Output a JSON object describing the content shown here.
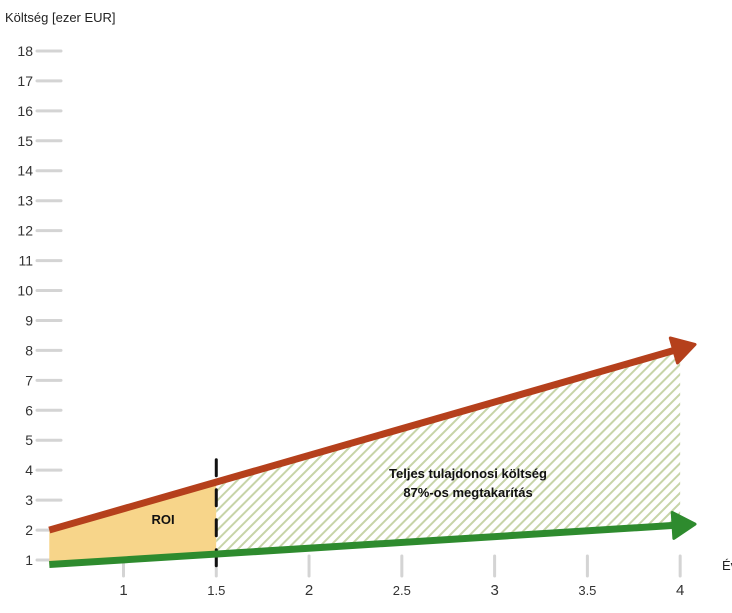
{
  "chart_data": {
    "type": "line",
    "ylabel": "Költség [ezer EUR]",
    "xlabel": "Év",
    "xlim": [
      0.55,
      4.15
    ],
    "ylim": [
      0.8,
      18.5
    ],
    "x_ticks": [
      {
        "value": 1,
        "label": "1",
        "major": true
      },
      {
        "value": 1.5,
        "label": "1.5",
        "major": false
      },
      {
        "value": 2,
        "label": "2",
        "major": true
      },
      {
        "value": 2.5,
        "label": "2.5",
        "major": false
      },
      {
        "value": 3,
        "label": "3",
        "major": true
      },
      {
        "value": 3.5,
        "label": "3.5",
        "major": false
      },
      {
        "value": 4,
        "label": "4",
        "major": true
      }
    ],
    "y_ticks": [
      {
        "value": 1,
        "label": "1"
      },
      {
        "value": 2,
        "label": "2"
      },
      {
        "value": 3,
        "label": "3"
      },
      {
        "value": 4,
        "label": "4"
      },
      {
        "value": 5,
        "label": "5"
      },
      {
        "value": 6,
        "label": "6"
      },
      {
        "value": 7,
        "label": "7"
      },
      {
        "value": 8,
        "label": "8"
      },
      {
        "value": 9,
        "label": "9"
      },
      {
        "value": 10,
        "label": "10"
      },
      {
        "value": 11,
        "label": "11"
      },
      {
        "value": 12,
        "label": "12"
      },
      {
        "value": 13,
        "label": "13"
      },
      {
        "value": 14,
        "label": "14"
      },
      {
        "value": 15,
        "label": "15"
      },
      {
        "value": 16,
        "label": "16"
      },
      {
        "value": 17,
        "label": "17"
      },
      {
        "value": 18,
        "label": "18"
      }
    ],
    "series": [
      {
        "color": "#b5401c",
        "x": [
          0.6,
          4.08
        ],
        "y": [
          2.0,
          8.2
        ]
      },
      {
        "color": "#2e8b2e",
        "x": [
          0.6,
          4.08
        ],
        "y": [
          0.85,
          2.2
        ]
      }
    ],
    "regions": [
      {
        "kind": "roi",
        "color": "#f7d58a",
        "x_from": 0.6,
        "x_to": 1.5
      },
      {
        "kind": "savings",
        "color": "#c7d4a8",
        "x_from": 1.5,
        "x_to": 4.0
      }
    ],
    "marker_x": 1.5,
    "annotations": {
      "roi": "ROI",
      "tco_line1": "Teljes tulajdonosi költség",
      "tco_line2": "87%-os megtakarítás"
    }
  }
}
